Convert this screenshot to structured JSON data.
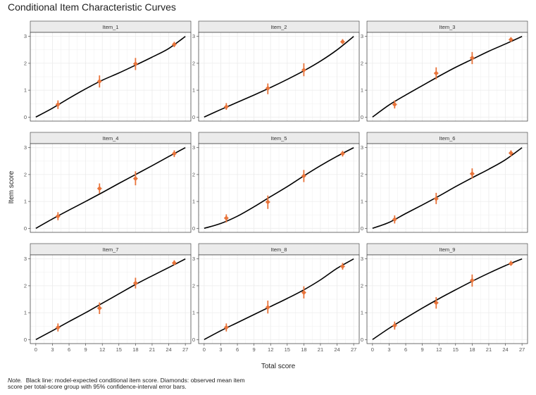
{
  "chart_data": {
    "type": "scatter",
    "title": "Conditional Item Characteristic Curves",
    "xlabel": "Total score",
    "ylabel": "Item score",
    "xlim": [
      -1,
      28
    ],
    "ylim": [
      -0.15,
      3.15
    ],
    "x_ticks": [
      0,
      3,
      6,
      9,
      12,
      15,
      18,
      21,
      24,
      27
    ],
    "y_ticks": [
      0,
      1,
      2,
      3
    ],
    "grid": true,
    "colors": {
      "curve": "#000000",
      "points": "#E8743B",
      "strip": "#EBEBEB",
      "panel_border": "#333333",
      "grid": "#EBEBEB"
    },
    "note_label": "Note.",
    "note_lines": [
      "Black line: model-expected conditional item score. Diamonds: observed mean item",
      "score per total-score group with 95% confidence-interval error bars."
    ],
    "panels": [
      {
        "name": "Item_1",
        "curve": {
          "x": [
            0,
            3,
            6,
            9,
            12,
            15,
            18,
            21,
            24,
            27
          ],
          "y": [
            0,
            0.33,
            0.7,
            1.05,
            1.37,
            1.64,
            1.93,
            2.23,
            2.55,
            3.0
          ]
        },
        "points": {
          "x": [
            4,
            11.5,
            18,
            25
          ],
          "y": [
            0.47,
            1.33,
            1.98,
            2.7
          ],
          "lower": [
            0.3,
            1.1,
            1.75,
            2.6
          ],
          "upper": [
            0.62,
            1.55,
            2.2,
            2.8
          ]
        }
      },
      {
        "name": "Item_2",
        "curve": {
          "x": [
            0,
            3,
            6,
            9,
            12,
            15,
            18,
            21,
            24,
            27
          ],
          "y": [
            0,
            0.28,
            0.55,
            0.82,
            1.1,
            1.4,
            1.72,
            2.08,
            2.5,
            3.0
          ]
        },
        "points": {
          "x": [
            4,
            11.5,
            18,
            25
          ],
          "y": [
            0.38,
            1.07,
            1.75,
            2.8
          ],
          "lower": [
            0.27,
            0.85,
            1.52,
            2.72
          ],
          "upper": [
            0.52,
            1.25,
            2.0,
            2.9
          ]
        }
      },
      {
        "name": "Item_3",
        "curve": {
          "x": [
            0,
            3,
            6,
            9,
            12,
            15,
            18,
            21,
            24,
            27
          ],
          "y": [
            0,
            0.45,
            0.82,
            1.17,
            1.52,
            1.85,
            2.15,
            2.45,
            2.72,
            3.0
          ]
        },
        "points": {
          "x": [
            4,
            11.5,
            18,
            25
          ],
          "y": [
            0.47,
            1.63,
            2.2,
            2.88
          ],
          "lower": [
            0.32,
            1.4,
            1.97,
            2.8
          ],
          "upper": [
            0.62,
            1.85,
            2.42,
            2.97
          ]
        }
      },
      {
        "name": "Item_4",
        "curve": {
          "x": [
            0,
            3,
            6,
            9,
            12,
            15,
            18,
            21,
            24,
            27
          ],
          "y": [
            0,
            0.35,
            0.68,
            1.0,
            1.33,
            1.67,
            2.0,
            2.33,
            2.67,
            3.0
          ]
        },
        "points": {
          "x": [
            4,
            11.5,
            18,
            25
          ],
          "y": [
            0.45,
            1.48,
            1.85,
            2.78
          ],
          "lower": [
            0.3,
            1.3,
            1.6,
            2.65
          ],
          "upper": [
            0.6,
            1.67,
            2.12,
            2.9
          ]
        }
      },
      {
        "name": "Item_5",
        "curve": {
          "x": [
            0,
            3,
            6,
            9,
            12,
            15,
            18,
            21,
            24,
            27
          ],
          "y": [
            0,
            0.18,
            0.45,
            0.8,
            1.18,
            1.55,
            1.95,
            2.33,
            2.68,
            3.0
          ]
        },
        "points": {
          "x": [
            4,
            11.5,
            18,
            25
          ],
          "y": [
            0.38,
            0.98,
            1.95,
            2.78
          ],
          "lower": [
            0.22,
            0.72,
            1.72,
            2.67
          ],
          "upper": [
            0.52,
            1.22,
            2.17,
            2.88
          ]
        }
      },
      {
        "name": "Item_6",
        "curve": {
          "x": [
            0,
            3,
            6,
            9,
            12,
            15,
            18,
            21,
            24,
            27
          ],
          "y": [
            0,
            0.22,
            0.55,
            0.87,
            1.2,
            1.55,
            1.88,
            2.2,
            2.55,
            3.0
          ]
        },
        "points": {
          "x": [
            4,
            11.5,
            18,
            25
          ],
          "y": [
            0.33,
            1.1,
            2.03,
            2.8
          ],
          "lower": [
            0.18,
            0.9,
            1.85,
            2.68
          ],
          "upper": [
            0.48,
            1.32,
            2.23,
            2.9
          ]
        }
      },
      {
        "name": "Item_7",
        "curve": {
          "x": [
            0,
            3,
            6,
            9,
            12,
            15,
            18,
            21,
            24,
            27
          ],
          "y": [
            0,
            0.33,
            0.67,
            1.0,
            1.35,
            1.7,
            2.05,
            2.37,
            2.68,
            3.0
          ]
        },
        "points": {
          "x": [
            4,
            11.5,
            18,
            25
          ],
          "y": [
            0.45,
            1.17,
            2.1,
            2.85
          ],
          "lower": [
            0.3,
            0.95,
            1.9,
            2.77
          ],
          "upper": [
            0.6,
            1.38,
            2.3,
            2.95
          ]
        }
      },
      {
        "name": "Item_8",
        "curve": {
          "x": [
            0,
            3,
            6,
            9,
            12,
            15,
            18,
            21,
            24,
            27
          ],
          "y": [
            0,
            0.33,
            0.63,
            0.93,
            1.23,
            1.53,
            1.85,
            2.22,
            2.65,
            3.0
          ]
        },
        "points": {
          "x": [
            4,
            11.5,
            18,
            25
          ],
          "y": [
            0.45,
            1.2,
            1.75,
            2.72
          ],
          "lower": [
            0.3,
            0.97,
            1.53,
            2.6
          ],
          "upper": [
            0.6,
            1.45,
            1.98,
            2.85
          ]
        }
      },
      {
        "name": "Item_9",
        "curve": {
          "x": [
            0,
            3,
            6,
            9,
            12,
            15,
            18,
            21,
            24,
            27
          ],
          "y": [
            0,
            0.42,
            0.8,
            1.17,
            1.52,
            1.85,
            2.17,
            2.47,
            2.75,
            3.0
          ]
        },
        "points": {
          "x": [
            4,
            11.5,
            18,
            25
          ],
          "y": [
            0.52,
            1.37,
            2.2,
            2.83
          ],
          "lower": [
            0.37,
            1.15,
            1.97,
            2.75
          ],
          "upper": [
            0.67,
            1.58,
            2.42,
            2.93
          ]
        }
      }
    ]
  }
}
